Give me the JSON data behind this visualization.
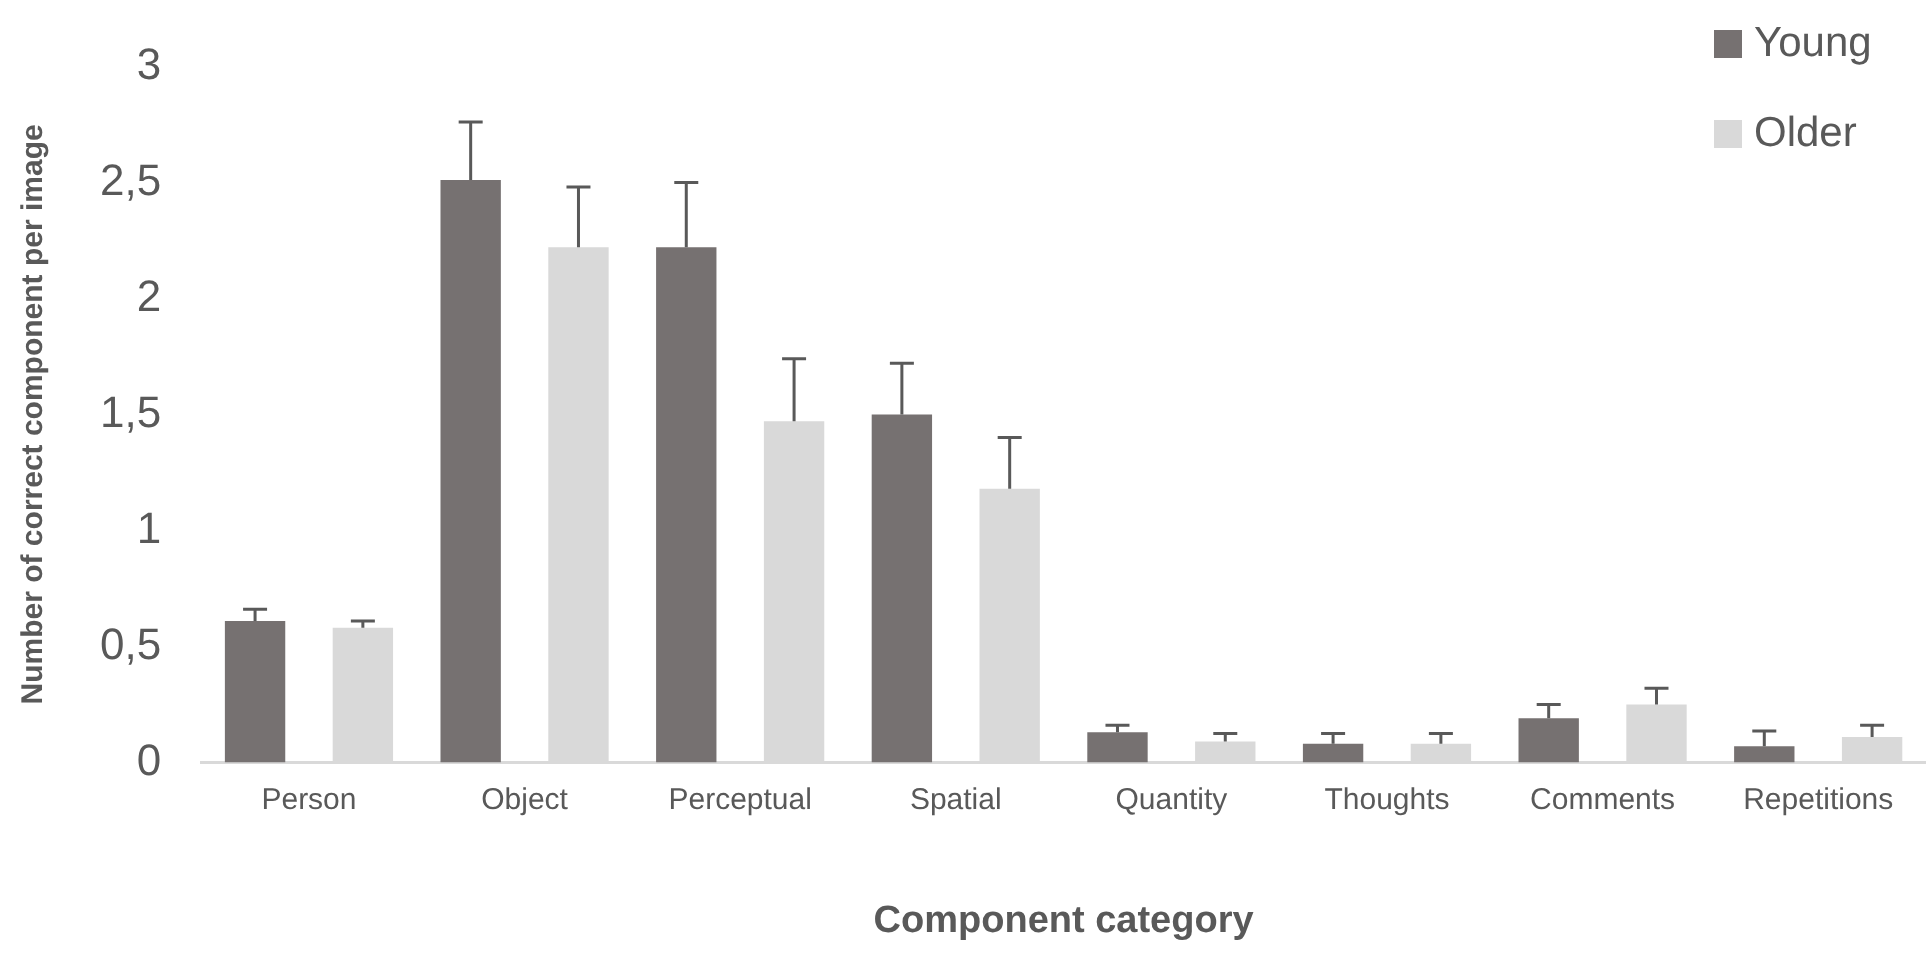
{
  "chart_data": {
    "type": "bar",
    "xlabel": "Component category",
    "ylabel": "Number of correct component per image",
    "categories": [
      "Person",
      "Object",
      "Perceptual",
      "Spatial",
      "Quantity",
      "Thoughts",
      "Comments",
      "Repetitions"
    ],
    "series": [
      {
        "name": "Young",
        "color": "#767171",
        "values": [
          0.61,
          2.51,
          2.22,
          1.5,
          0.13,
          0.08,
          0.19,
          0.07
        ],
        "errors": [
          [
            0.61,
            0.66
          ],
          [
            2.51,
            2.76
          ],
          [
            2.22,
            2.5
          ],
          [
            1.5,
            1.72
          ],
          [
            0.13,
            0.16
          ],
          [
            0.08,
            0.125
          ],
          [
            0.19,
            0.25
          ],
          [
            0.07,
            0.135
          ]
        ]
      },
      {
        "name": "Older",
        "color": "#d9d9d9",
        "values": [
          0.58,
          2.22,
          1.47,
          1.18,
          0.09,
          0.08,
          0.25,
          0.11
        ],
        "errors": [
          [
            0.58,
            0.61
          ],
          [
            2.22,
            2.48
          ],
          [
            1.47,
            1.74
          ],
          [
            1.18,
            1.4
          ],
          [
            0.09,
            0.125
          ],
          [
            0.08,
            0.125
          ],
          [
            0.25,
            0.32
          ],
          [
            0.11,
            0.16
          ]
        ]
      }
    ],
    "ylim": [
      0,
      3
    ],
    "yticks": [
      0,
      {
        "value": 0.5,
        "label": "0,5"
      },
      1,
      {
        "value": 1.5,
        "label": "1,5"
      },
      2,
      {
        "value": 2.5,
        "label": "2,5"
      },
      3
    ],
    "grid": false,
    "legend": "top right"
  }
}
